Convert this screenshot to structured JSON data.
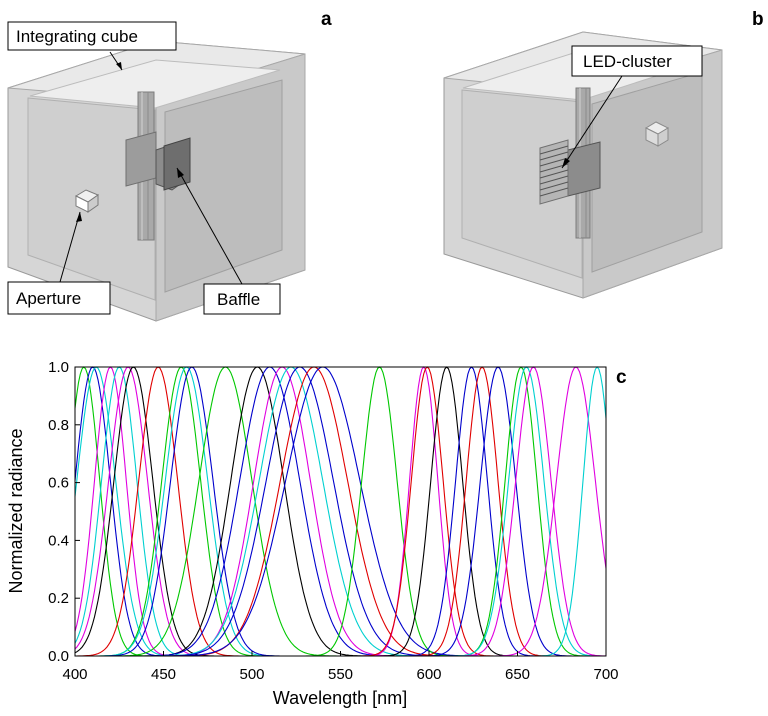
{
  "panels": {
    "a": "a",
    "b": "b",
    "c": "c"
  },
  "callouts": {
    "integrating_cube": "Integrating cube",
    "aperture": "Aperture",
    "baffle": "Baffle",
    "led_cluster": "LED-cluster"
  },
  "chart_data": {
    "type": "line",
    "xlabel": "Wavelength [nm]",
    "ylabel": "Normalized radiance",
    "xlim": [
      400,
      700
    ],
    "ylim": [
      0,
      1.0
    ],
    "xticks": [
      400,
      450,
      500,
      550,
      600,
      650,
      700
    ],
    "yticks": [
      0.0,
      0.2,
      0.4,
      0.6,
      0.8,
      1.0
    ],
    "ytick_labels": [
      "0.0",
      "0.2",
      "0.4",
      "0.6",
      "0.8",
      "1.0"
    ],
    "grid": false,
    "legend": "none",
    "peaks": [
      {
        "center": 405,
        "width": 9,
        "color": "#00c800"
      },
      {
        "center": 410,
        "width": 10,
        "color": "#0000cc"
      },
      {
        "center": 412,
        "width": 11,
        "color": "#00d0d0"
      },
      {
        "center": 420,
        "width": 9,
        "color": "#e000e0"
      },
      {
        "center": 425,
        "width": 10,
        "color": "#00d0d0"
      },
      {
        "center": 430,
        "width": 11,
        "color": "#e000e0"
      },
      {
        "center": 433,
        "width": 11,
        "color": "#000000"
      },
      {
        "center": 447,
        "width": 11,
        "color": "#e00000"
      },
      {
        "center": 460,
        "width": 11,
        "color": "#00c800"
      },
      {
        "center": 463,
        "width": 12,
        "color": "#00d0d0"
      },
      {
        "center": 466,
        "width": 12,
        "color": "#0000cc"
      },
      {
        "center": 485,
        "width": 15,
        "color": "#00c800"
      },
      {
        "center": 503,
        "width": 15,
        "color": "#000000"
      },
      {
        "center": 510,
        "width": 17,
        "color": "#0000cc"
      },
      {
        "center": 517,
        "width": 16,
        "color": "#e000e0"
      },
      {
        "center": 522,
        "width": 18,
        "color": "#00d0d0"
      },
      {
        "center": 527,
        "width": 19,
        "color": "#0000cc"
      },
      {
        "center": 535,
        "width": 19,
        "color": "#e00000"
      },
      {
        "center": 540,
        "width": 21,
        "color": "#0000cc"
      },
      {
        "center": 572,
        "width": 10,
        "color": "#00c800"
      },
      {
        "center": 597,
        "width": 8,
        "color": "#e000e0"
      },
      {
        "center": 599,
        "width": 9,
        "color": "#e00000"
      },
      {
        "center": 610,
        "width": 9,
        "color": "#000000"
      },
      {
        "center": 624,
        "width": 9,
        "color": "#0000cc"
      },
      {
        "center": 630,
        "width": 9,
        "color": "#e00000"
      },
      {
        "center": 639,
        "width": 10,
        "color": "#0000cc"
      },
      {
        "center": 652,
        "width": 9,
        "color": "#00c800"
      },
      {
        "center": 655,
        "width": 10,
        "color": "#00d0d0"
      },
      {
        "center": 659,
        "width": 10,
        "color": "#e000e0"
      },
      {
        "center": 683,
        "width": 11,
        "color": "#e000e0"
      },
      {
        "center": 695,
        "width": 8,
        "color": "#00d0d0"
      }
    ]
  }
}
